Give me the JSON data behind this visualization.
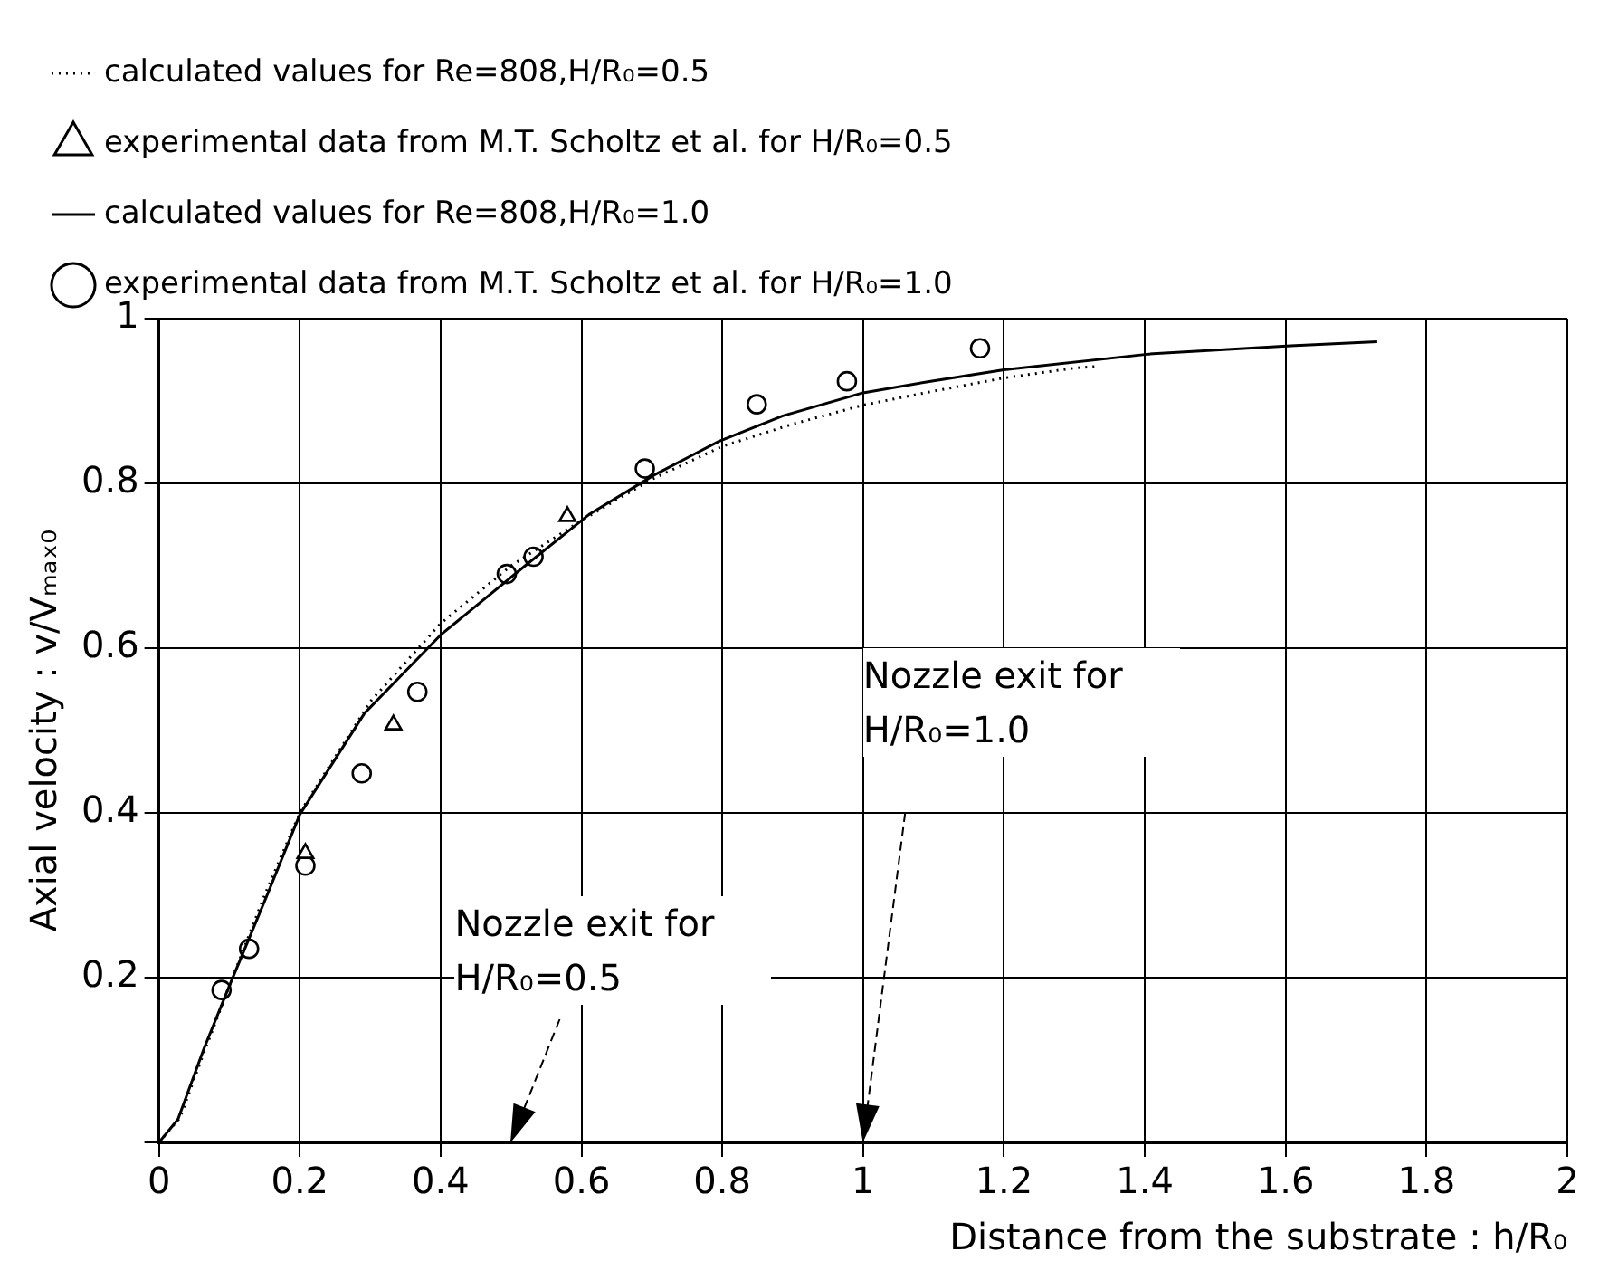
{
  "chart_data": {
    "type": "line",
    "xlabel": "Distance from the substrate : h/R₀",
    "ylabel": "Axial velocity : v/Vₘₐₓ₀",
    "legend": "top",
    "grid": true,
    "xlim": [
      0,
      2
    ],
    "ylim": [
      0,
      1
    ],
    "xticks": [
      0,
      0.2,
      0.4,
      0.6,
      0.8,
      1,
      1.2,
      1.4,
      1.6,
      1.8,
      2
    ],
    "yticks": [
      {
        "value": 0,
        "label": null
      },
      0.2,
      0.4,
      0.6,
      0.8,
      1
    ],
    "series": [
      {
        "name": "calculated values for Re=808,H/R₀=0.5",
        "type": "line",
        "line_style": "dotted",
        "marker": "none",
        "color": "#000000",
        "x": [
          0,
          0.03,
          0.06,
          0.1,
          0.15,
          0.2,
          0.3,
          0.4,
          0.5,
          0.6,
          0.7,
          0.8,
          0.9,
          1.0,
          1.1,
          1.2,
          1.3,
          1.33
        ],
        "values": [
          0,
          0.03,
          0.1,
          0.19,
          0.3,
          0.4,
          0.535,
          0.63,
          0.7,
          0.755,
          0.805,
          0.845,
          0.872,
          0.895,
          0.912,
          0.928,
          0.94,
          0.942
        ]
      },
      {
        "name": "experimental data from M.T. Scholtz et al. for H/R₀=0.5",
        "type": "scatter",
        "marker": "triangle",
        "color": "#000000",
        "x": [
          0.208,
          0.333,
          0.58
        ],
        "values": [
          0.351,
          0.507,
          0.76
        ]
      },
      {
        "name": "calculated values for Re=808,H/R₀=1.0",
        "type": "line",
        "line_style": "solid",
        "marker": "none",
        "color": "#000000",
        "x": [
          0,
          0.027,
          0.064,
          0.1,
          0.155,
          0.2,
          0.292,
          0.4,
          0.52,
          0.612,
          0.703,
          0.795,
          0.886,
          1.0,
          1.096,
          1.2,
          1.406,
          1.607,
          1.73
        ],
        "values": [
          0,
          0.028,
          0.114,
          0.19,
          0.303,
          0.398,
          0.521,
          0.616,
          0.7,
          0.763,
          0.81,
          0.851,
          0.882,
          0.91,
          0.924,
          0.938,
          0.957,
          0.967,
          0.972
        ]
      },
      {
        "name": "experimental data from M.T. Scholtz et al. for H/R₀=1.0",
        "type": "scatter",
        "marker": "circle",
        "color": "#000000",
        "x": [
          0.089,
          0.128,
          0.208,
          0.288,
          0.367,
          0.494,
          0.532,
          0.69,
          0.849,
          0.977,
          1.166
        ],
        "values": [
          0.185,
          0.235,
          0.336,
          0.448,
          0.547,
          0.69,
          0.711,
          0.818,
          0.896,
          0.924,
          0.964
        ]
      }
    ],
    "annotations": [
      "Nozzle exit for H/R₀=0.5",
      "Nozzle exit for H/R₀=1.0"
    ]
  }
}
